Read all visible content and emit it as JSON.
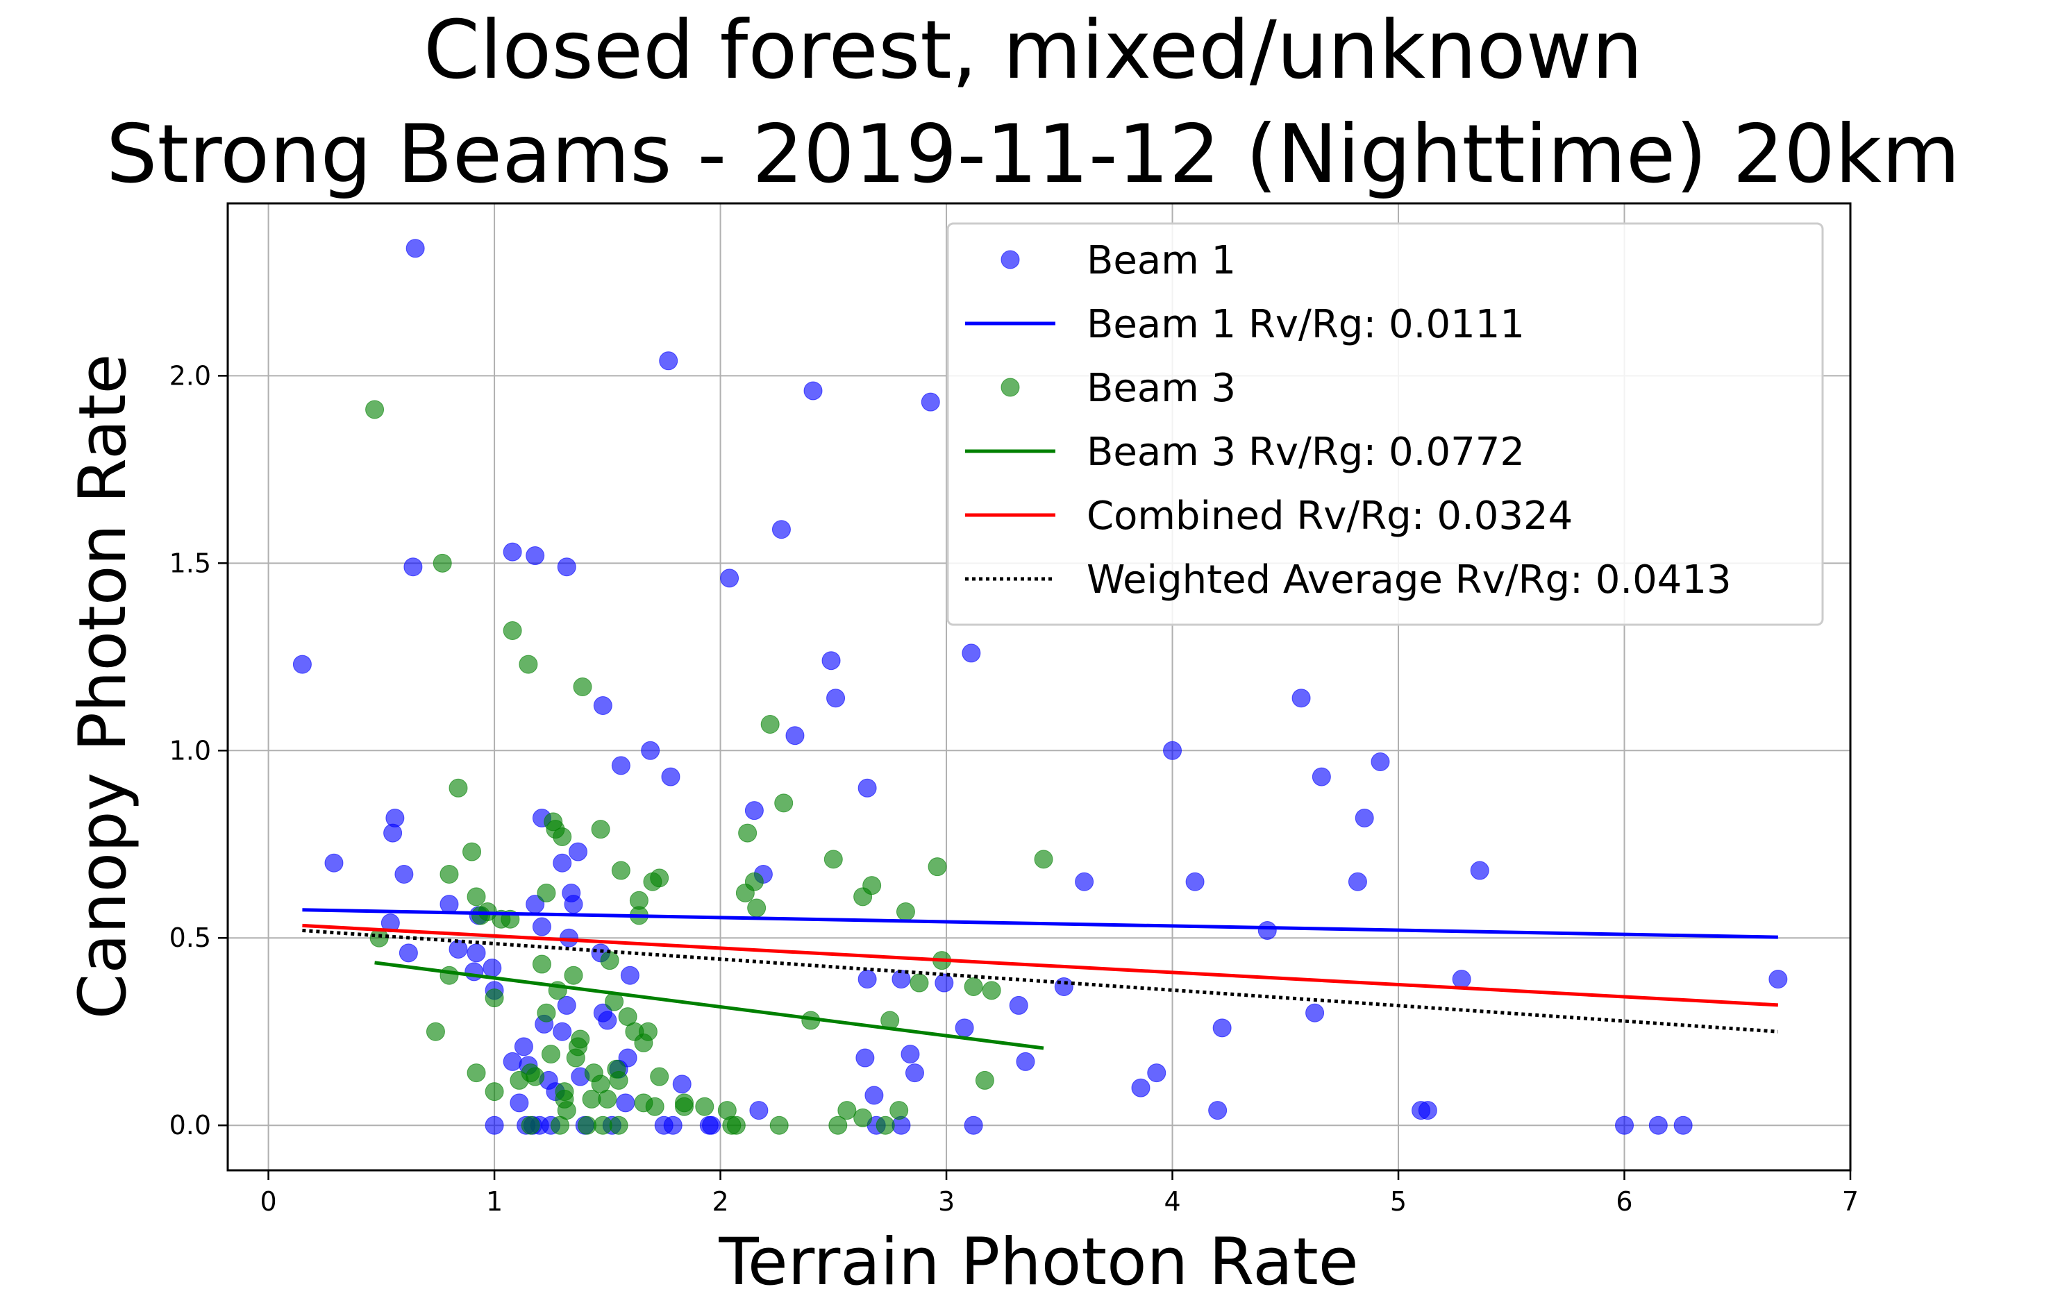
{
  "chart_data": {
    "type": "scatter",
    "title_line1": "Closed forest, mixed/unknown",
    "title_line2": "Strong Beams - 2019-11-12 (Nighttime) 20km",
    "xlabel": "Terrain Photon Rate",
    "ylabel": "Canopy Photon Rate",
    "xlim": [
      -0.18,
      7.0
    ],
    "ylim": [
      -0.12,
      2.46
    ],
    "xticks": [
      0,
      1,
      2,
      3,
      4,
      5,
      6,
      7
    ],
    "yticks": [
      0.0,
      0.5,
      1.0,
      1.5,
      2.0
    ],
    "xtick_labels": [
      "0",
      "1",
      "2",
      "3",
      "4",
      "5",
      "6",
      "7"
    ],
    "ytick_labels": [
      "0.0",
      "0.5",
      "1.0",
      "1.5",
      "2.0"
    ],
    "grid": true,
    "legend_position": "top-right",
    "series": [
      {
        "name": "Beam 1",
        "kind": "scatter",
        "color": "#0000ff",
        "points": [
          [
            0.15,
            1.23
          ],
          [
            0.29,
            0.7
          ],
          [
            0.54,
            0.54
          ],
          [
            0.55,
            0.78
          ],
          [
            0.56,
            0.82
          ],
          [
            0.6,
            0.67
          ],
          [
            0.62,
            0.46
          ],
          [
            0.64,
            1.49
          ],
          [
            0.65,
            2.34
          ],
          [
            0.8,
            0.59
          ],
          [
            0.84,
            0.47
          ],
          [
            0.91,
            0.41
          ],
          [
            0.92,
            0.46
          ],
          [
            0.93,
            0.56
          ],
          [
            0.99,
            0.42
          ],
          [
            1.0,
            0.36
          ],
          [
            1.0,
            0.0
          ],
          [
            1.08,
            1.53
          ],
          [
            1.08,
            0.17
          ],
          [
            1.11,
            0.06
          ],
          [
            1.13,
            0.21
          ],
          [
            1.14,
            0.0
          ],
          [
            1.15,
            0.16
          ],
          [
            1.17,
            0.0
          ],
          [
            1.18,
            0.59
          ],
          [
            1.18,
            1.52
          ],
          [
            1.2,
            0.0
          ],
          [
            1.21,
            0.53
          ],
          [
            1.21,
            0.82
          ],
          [
            1.22,
            0.27
          ],
          [
            1.24,
            0.12
          ],
          [
            1.25,
            0.0
          ],
          [
            1.27,
            0.09
          ],
          [
            1.3,
            0.7
          ],
          [
            1.3,
            0.25
          ],
          [
            1.32,
            0.32
          ],
          [
            1.32,
            1.49
          ],
          [
            1.33,
            0.5
          ],
          [
            1.34,
            0.62
          ],
          [
            1.35,
            0.59
          ],
          [
            1.37,
            0.73
          ],
          [
            1.38,
            0.13
          ],
          [
            1.4,
            0.0
          ],
          [
            1.47,
            0.46
          ],
          [
            1.48,
            0.3
          ],
          [
            1.48,
            1.12
          ],
          [
            1.5,
            0.28
          ],
          [
            1.52,
            0.0
          ],
          [
            1.55,
            0.15
          ],
          [
            1.56,
            0.96
          ],
          [
            1.58,
            0.06
          ],
          [
            1.59,
            0.18
          ],
          [
            1.6,
            0.4
          ],
          [
            1.69,
            1.0
          ],
          [
            1.75,
            0.0
          ],
          [
            1.77,
            2.04
          ],
          [
            1.78,
            0.93
          ],
          [
            1.79,
            0.0
          ],
          [
            1.83,
            0.11
          ],
          [
            1.95,
            0.0
          ],
          [
            1.96,
            0.0
          ],
          [
            2.04,
            1.46
          ],
          [
            2.15,
            0.84
          ],
          [
            2.17,
            0.04
          ],
          [
            2.19,
            0.67
          ],
          [
            2.27,
            1.59
          ],
          [
            2.33,
            1.04
          ],
          [
            2.41,
            1.96
          ],
          [
            2.49,
            1.24
          ],
          [
            2.51,
            1.14
          ],
          [
            2.64,
            0.18
          ],
          [
            2.65,
            0.9
          ],
          [
            2.65,
            0.39
          ],
          [
            2.68,
            0.08
          ],
          [
            2.69,
            0.0
          ],
          [
            2.8,
            0.39
          ],
          [
            2.8,
            0.0
          ],
          [
            2.84,
            0.19
          ],
          [
            2.86,
            0.14
          ],
          [
            2.93,
            1.93
          ],
          [
            2.99,
            0.38
          ],
          [
            3.08,
            0.26
          ],
          [
            3.11,
            1.26
          ],
          [
            3.12,
            0.0
          ],
          [
            3.32,
            0.32
          ],
          [
            3.35,
            0.17
          ],
          [
            3.52,
            0.37
          ],
          [
            3.61,
            0.65
          ],
          [
            3.86,
            0.1
          ],
          [
            3.93,
            0.14
          ],
          [
            4.0,
            1.0
          ],
          [
            4.1,
            0.65
          ],
          [
            4.2,
            0.04
          ],
          [
            4.22,
            0.26
          ],
          [
            4.42,
            0.52
          ],
          [
            4.57,
            1.14
          ],
          [
            4.63,
            0.3
          ],
          [
            4.66,
            0.93
          ],
          [
            4.82,
            0.65
          ],
          [
            4.85,
            0.82
          ],
          [
            4.92,
            0.97
          ],
          [
            5.1,
            0.04
          ],
          [
            5.13,
            0.04
          ],
          [
            5.28,
            0.39
          ],
          [
            5.36,
            0.68
          ],
          [
            6.0,
            0.0
          ],
          [
            6.15,
            0.0
          ],
          [
            6.26,
            0.0
          ],
          [
            6.68,
            0.39
          ]
        ]
      },
      {
        "name": "Beam 1 Rv/Rg: 0.0111",
        "kind": "line",
        "color": "#0000ff",
        "x": [
          0.15,
          6.68
        ],
        "y": [
          0.575,
          0.502
        ]
      },
      {
        "name": "Beam 3",
        "kind": "scatter",
        "color": "#008000",
        "points": [
          [
            0.47,
            1.91
          ],
          [
            0.49,
            0.5
          ],
          [
            0.74,
            0.25
          ],
          [
            0.77,
            1.5
          ],
          [
            0.8,
            0.4
          ],
          [
            0.8,
            0.67
          ],
          [
            0.84,
            0.9
          ],
          [
            0.9,
            0.73
          ],
          [
            0.92,
            0.61
          ],
          [
            0.92,
            0.14
          ],
          [
            0.94,
            0.56
          ],
          [
            0.97,
            0.57
          ],
          [
            1.0,
            0.34
          ],
          [
            1.0,
            0.09
          ],
          [
            1.03,
            0.55
          ],
          [
            1.07,
            0.55
          ],
          [
            1.08,
            1.32
          ],
          [
            1.11,
            0.12
          ],
          [
            1.15,
            1.23
          ],
          [
            1.16,
            0.14
          ],
          [
            1.16,
            0.0
          ],
          [
            1.18,
            0.13
          ],
          [
            1.21,
            0.43
          ],
          [
            1.23,
            0.3
          ],
          [
            1.23,
            0.62
          ],
          [
            1.25,
            0.19
          ],
          [
            1.26,
            0.81
          ],
          [
            1.27,
            0.79
          ],
          [
            1.28,
            0.36
          ],
          [
            1.29,
            0.0
          ],
          [
            1.3,
            0.77
          ],
          [
            1.31,
            0.07
          ],
          [
            1.31,
            0.09
          ],
          [
            1.32,
            0.04
          ],
          [
            1.35,
            0.4
          ],
          [
            1.36,
            0.18
          ],
          [
            1.37,
            0.21
          ],
          [
            1.38,
            0.23
          ],
          [
            1.39,
            1.17
          ],
          [
            1.41,
            0.0
          ],
          [
            1.43,
            0.07
          ],
          [
            1.44,
            0.14
          ],
          [
            1.47,
            0.11
          ],
          [
            1.47,
            0.79
          ],
          [
            1.48,
            0.0
          ],
          [
            1.5,
            0.07
          ],
          [
            1.51,
            0.44
          ],
          [
            1.53,
            0.33
          ],
          [
            1.54,
            0.15
          ],
          [
            1.55,
            0.12
          ],
          [
            1.55,
            0.0
          ],
          [
            1.56,
            0.68
          ],
          [
            1.59,
            0.29
          ],
          [
            1.62,
            0.25
          ],
          [
            1.64,
            0.56
          ],
          [
            1.64,
            0.6
          ],
          [
            1.66,
            0.22
          ],
          [
            1.66,
            0.06
          ],
          [
            1.68,
            0.25
          ],
          [
            1.7,
            0.65
          ],
          [
            1.71,
            0.05
          ],
          [
            1.73,
            0.66
          ],
          [
            1.73,
            0.13
          ],
          [
            1.84,
            0.06
          ],
          [
            1.84,
            0.05
          ],
          [
            1.93,
            0.05
          ],
          [
            2.03,
            0.04
          ],
          [
            2.05,
            0.0
          ],
          [
            2.07,
            0.0
          ],
          [
            2.11,
            0.62
          ],
          [
            2.12,
            0.78
          ],
          [
            2.15,
            0.65
          ],
          [
            2.16,
            0.58
          ],
          [
            2.22,
            1.07
          ],
          [
            2.26,
            0.0
          ],
          [
            2.28,
            0.86
          ],
          [
            2.4,
            0.28
          ],
          [
            2.5,
            0.71
          ],
          [
            2.52,
            0.0
          ],
          [
            2.56,
            0.04
          ],
          [
            2.63,
            0.61
          ],
          [
            2.63,
            0.02
          ],
          [
            2.67,
            0.64
          ],
          [
            2.73,
            0.0
          ],
          [
            2.75,
            0.28
          ],
          [
            2.79,
            0.04
          ],
          [
            2.82,
            0.57
          ],
          [
            2.88,
            0.38
          ],
          [
            2.96,
            0.69
          ],
          [
            2.98,
            0.44
          ],
          [
            3.12,
            0.37
          ],
          [
            3.17,
            0.12
          ],
          [
            3.2,
            0.36
          ],
          [
            3.43,
            0.71
          ]
        ]
      },
      {
        "name": "Beam 3 Rv/Rg: 0.0772",
        "kind": "line",
        "color": "#008000",
        "x": [
          0.47,
          3.43
        ],
        "y": [
          0.434,
          0.206
        ]
      },
      {
        "name": "Combined Rv/Rg: 0.0324",
        "kind": "line",
        "color": "#ff0000",
        "x": [
          0.15,
          6.68
        ],
        "y": [
          0.533,
          0.321
        ]
      },
      {
        "name": "Weighted Average Rv/Rg: 0.0413",
        "kind": "line",
        "color": "#000000",
        "dotted": true,
        "x": [
          0.15,
          6.68
        ],
        "y": [
          0.52,
          0.25
        ]
      }
    ]
  }
}
